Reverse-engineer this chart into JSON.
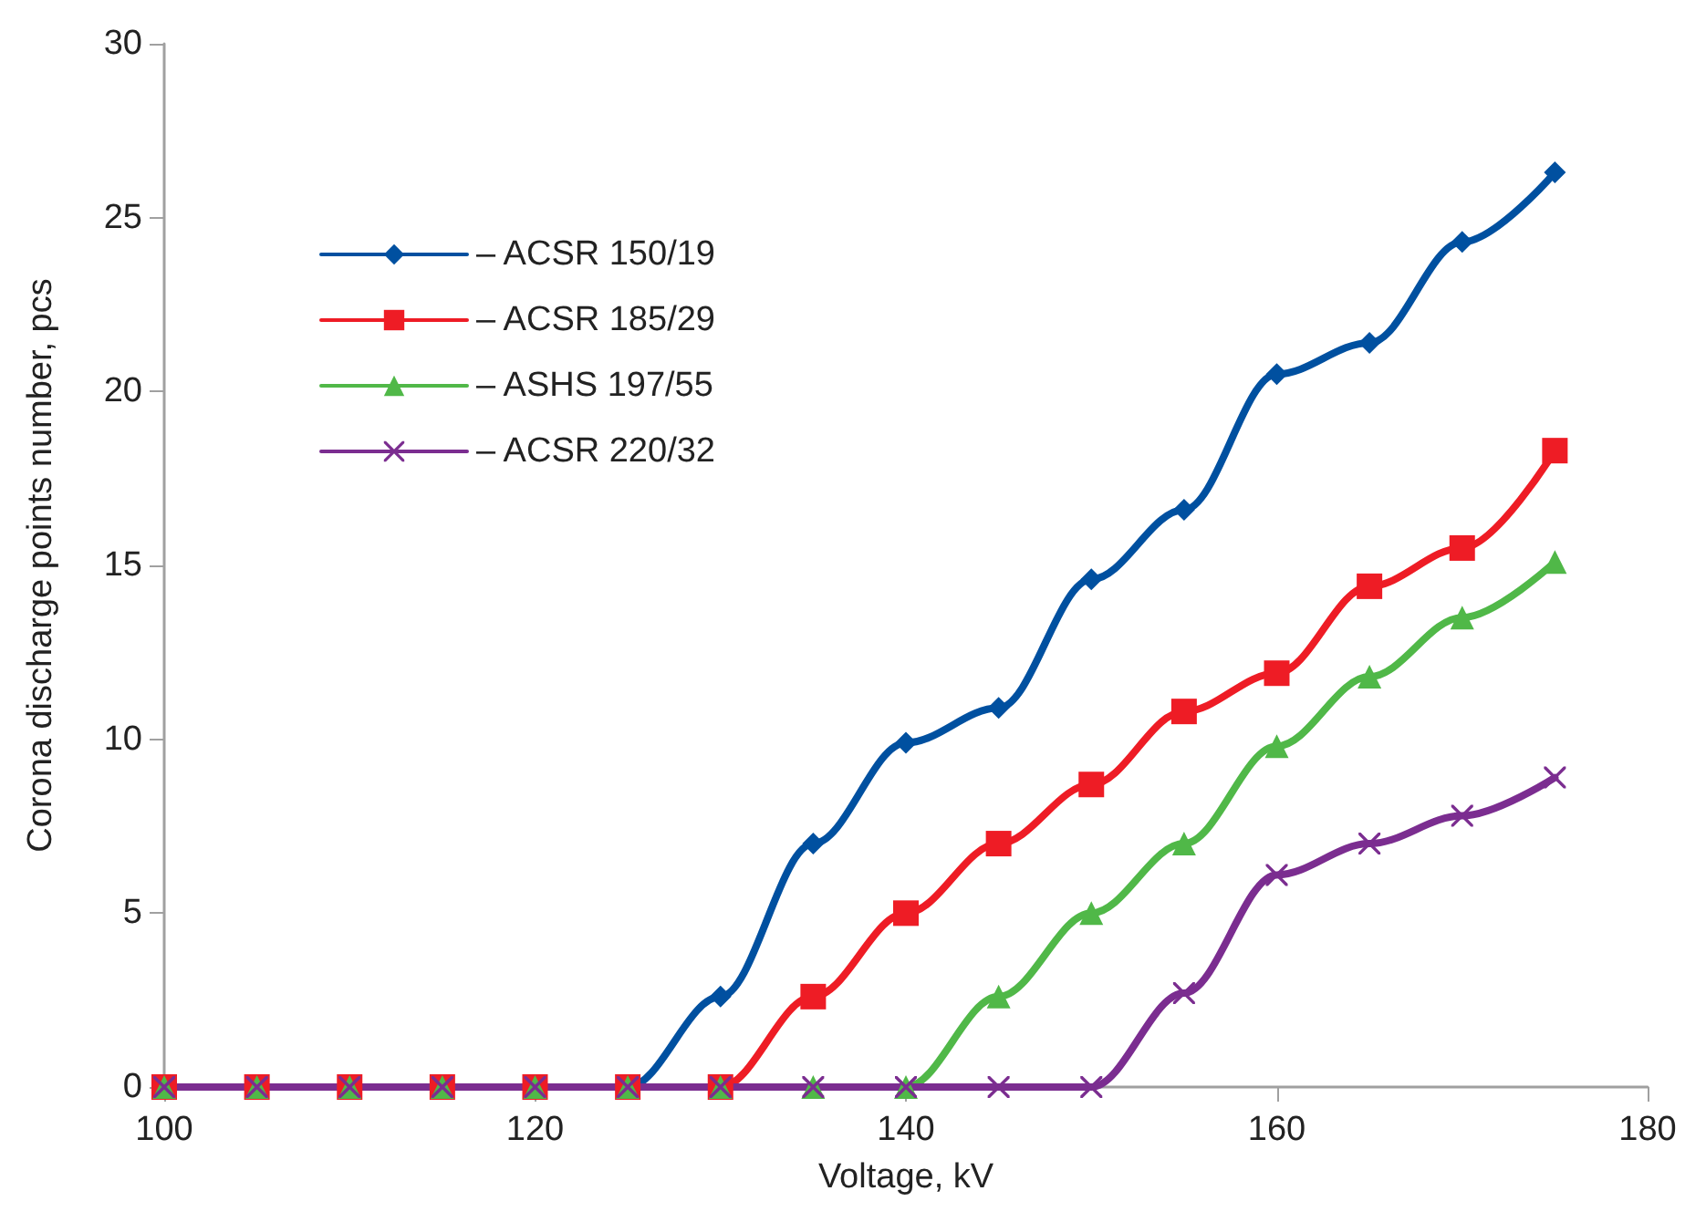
{
  "chart_data": {
    "type": "line",
    "xlabel": "Voltage, kV",
    "ylabel": "Corona discharge points number, pcs",
    "x": [
      100,
      105,
      110,
      115,
      120,
      125,
      130,
      135,
      140,
      145,
      150,
      155,
      160,
      165,
      170,
      175
    ],
    "series": [
      {
        "name": "– ACSR 150/19",
        "color": "#0050a0",
        "marker": "diamond",
        "values": [
          null,
          null,
          null,
          null,
          0,
          0,
          2.6,
          7.0,
          9.9,
          10.9,
          14.6,
          16.6,
          20.5,
          21.4,
          24.3,
          26.3
        ]
      },
      {
        "name": "– ACSR 185/29",
        "color": "#ee1c25",
        "marker": "square",
        "values": [
          0,
          0,
          0,
          0,
          0,
          0,
          0,
          2.6,
          5.0,
          7.0,
          8.7,
          10.8,
          11.9,
          14.4,
          15.5,
          18.3
        ]
      },
      {
        "name": "– ASHS 197/55",
        "color": "#50b848",
        "marker": "triangle",
        "values": [
          0,
          0,
          0,
          0,
          0,
          0,
          0,
          0,
          0,
          2.6,
          5.0,
          7.0,
          9.8,
          11.8,
          13.5,
          15.1
        ]
      },
      {
        "name": "– ACSR 220/32",
        "color": "#7b2d90",
        "marker": "cross",
        "values": [
          0,
          0,
          0,
          0,
          0,
          0,
          0,
          0,
          0,
          0,
          0,
          2.7,
          6.1,
          7.0,
          7.8,
          8.9
        ]
      }
    ],
    "xlim": [
      100,
      180
    ],
    "xticks": [
      100,
      120,
      140,
      160,
      180
    ],
    "ylim": [
      0,
      30
    ],
    "yticks": [
      0,
      5,
      10,
      15,
      20,
      25,
      30
    ],
    "grid": false,
    "legend": "top left",
    "line_style": "solid"
  }
}
